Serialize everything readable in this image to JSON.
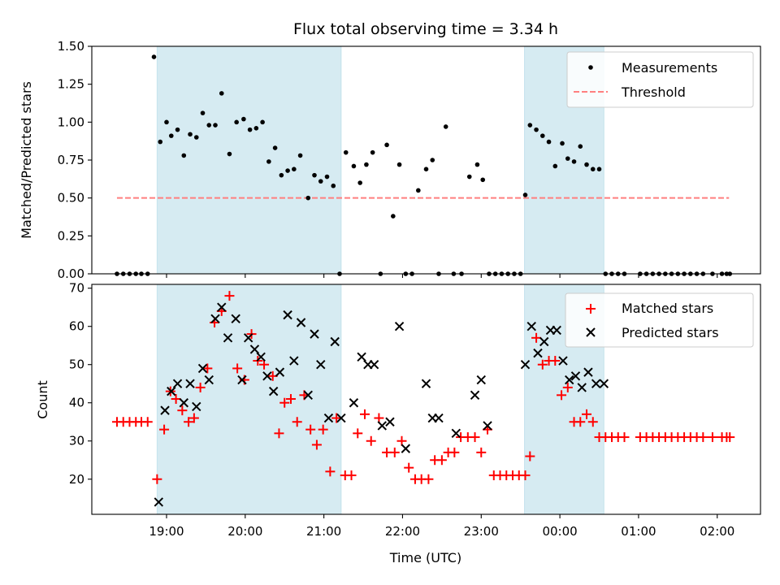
{
  "figure": {
    "title": "Flux total observing time = 3.34 h"
  },
  "chart_data": [
    {
      "type": "scatter",
      "ylabel": "Matched/Predicted stars",
      "xlabel": "",
      "xlim": [
        18.05,
        26.55
      ],
      "ylim": [
        0,
        1.5
      ],
      "y_ticks": [
        0,
        0.25,
        0.5,
        0.75,
        1.0,
        1.25,
        1.5
      ],
      "y_tick_labels": [
        "0.00",
        "0.25",
        "0.50",
        "0.75",
        "1.00",
        "1.25",
        "1.50"
      ],
      "legend": {
        "position": "top-right",
        "entries": [
          "Measurements",
          "Threshold"
        ]
      },
      "shaded_intervals": [
        [
          18.88,
          21.22
        ],
        [
          23.55,
          24.56
        ]
      ],
      "threshold": {
        "name": "Threshold",
        "y": 0.5,
        "x_range": [
          18.37,
          26.15
        ],
        "color": "#ff7f7f"
      },
      "series": [
        {
          "name": "Measurements",
          "color": "#000000",
          "x": [
            18.37,
            18.45,
            18.53,
            18.61,
            18.68,
            18.76,
            18.84,
            18.92,
            19.0,
            19.06,
            19.14,
            19.22,
            19.3,
            19.38,
            19.46,
            19.54,
            19.62,
            19.7,
            19.8,
            19.89,
            19.98,
            20.06,
            20.14,
            20.22,
            20.3,
            20.38,
            20.46,
            20.54,
            20.62,
            20.7,
            20.8,
            20.88,
            20.96,
            21.04,
            21.12,
            21.2,
            21.28,
            21.38,
            21.46,
            21.54,
            21.62,
            21.72,
            21.8,
            21.88,
            21.96,
            22.04,
            22.12,
            22.2,
            22.3,
            22.38,
            22.46,
            22.55,
            22.65,
            22.75,
            22.85,
            22.95,
            23.02,
            23.1,
            23.18,
            23.26,
            23.34,
            23.42,
            23.5,
            23.56,
            23.62,
            23.7,
            23.78,
            23.86,
            23.94,
            24.03,
            24.1,
            24.18,
            24.26,
            24.34,
            24.42,
            24.5,
            24.58,
            24.66,
            24.74,
            24.82,
            25.02,
            25.1,
            25.18,
            25.26,
            25.34,
            25.42,
            25.5,
            25.58,
            25.66,
            25.74,
            25.82,
            25.94,
            26.06,
            26.12,
            26.16
          ],
          "y": [
            0,
            0,
            0,
            0,
            0,
            0,
            1.43,
            0.87,
            1.0,
            0.91,
            0.95,
            0.78,
            0.92,
            0.9,
            1.06,
            0.98,
            0.98,
            1.19,
            0.79,
            1.0,
            1.02,
            0.95,
            0.96,
            1.0,
            0.74,
            0.83,
            0.65,
            0.68,
            0.69,
            0.78,
            0.5,
            0.65,
            0.61,
            0.64,
            0.58,
            0,
            0.8,
            0.71,
            0.6,
            0.72,
            0.8,
            0,
            0.85,
            0.38,
            0.72,
            0,
            0,
            0.55,
            0.69,
            0.75,
            0,
            0.97,
            0,
            0,
            0.64,
            0.72,
            0.62,
            0,
            0,
            0,
            0,
            0,
            0,
            0.52,
            0.98,
            0.95,
            0.91,
            0.87,
            0.71,
            0.86,
            0.76,
            0.74,
            0.84,
            0.72,
            0.69,
            0.69,
            0,
            0,
            0,
            0,
            0,
            0,
            0,
            0,
            0,
            0,
            0,
            0,
            0,
            0,
            0,
            0,
            0,
            0,
            0
          ]
        }
      ]
    },
    {
      "type": "scatter",
      "ylabel": "Count",
      "xlabel": "Time (UTC)",
      "xlim": [
        18.05,
        26.55
      ],
      "ylim": [
        10.8,
        71
      ],
      "y_ticks": [
        20,
        30,
        40,
        50,
        60,
        70
      ],
      "y_tick_labels": [
        "20",
        "30",
        "40",
        "50",
        "60",
        "70"
      ],
      "x_ticks": [
        19,
        20,
        21,
        22,
        23,
        24,
        25,
        26
      ],
      "x_tick_labels": [
        "19:00",
        "20:00",
        "21:00",
        "22:00",
        "23:00",
        "00:00",
        "01:00",
        "02:00"
      ],
      "legend": {
        "position": "top-right",
        "entries": [
          "Matched stars",
          "Predicted stars"
        ]
      },
      "shaded_intervals": [
        [
          18.88,
          21.22
        ],
        [
          23.55,
          24.56
        ]
      ],
      "series": [
        {
          "name": "Matched stars",
          "marker": "plus",
          "color": "#ff0000",
          "x": [
            18.37,
            18.45,
            18.53,
            18.61,
            18.68,
            18.76,
            18.88,
            18.97,
            19.05,
            19.12,
            19.2,
            19.28,
            19.35,
            19.43,
            19.52,
            19.61,
            19.7,
            19.8,
            19.9,
            19.99,
            20.08,
            20.16,
            20.24,
            20.35,
            20.43,
            20.5,
            20.58,
            20.66,
            20.75,
            20.83,
            20.91,
            20.99,
            21.08,
            21.16,
            21.27,
            21.35,
            21.43,
            21.52,
            21.6,
            21.7,
            21.8,
            21.9,
            21.99,
            22.08,
            22.16,
            22.24,
            22.33,
            22.41,
            22.5,
            22.58,
            22.66,
            22.74,
            22.83,
            22.92,
            23.0,
            23.08,
            23.16,
            23.24,
            23.32,
            23.4,
            23.48,
            23.56,
            23.62,
            23.7,
            23.78,
            23.86,
            23.94,
            24.02,
            24.1,
            24.18,
            24.26,
            24.34,
            24.42,
            24.5,
            24.58,
            24.66,
            24.74,
            24.82,
            25.02,
            25.1,
            25.18,
            25.26,
            25.34,
            25.42,
            25.5,
            25.58,
            25.66,
            25.74,
            25.82,
            25.94,
            26.06,
            26.12,
            26.16
          ],
          "y": [
            35,
            35,
            35,
            35,
            35,
            35,
            20,
            33,
            43,
            41,
            38,
            35,
            36,
            44,
            49,
            61,
            64,
            68,
            49,
            46,
            58,
            51,
            50,
            47,
            32,
            40,
            41,
            35,
            42,
            33,
            29,
            33,
            22,
            36,
            21,
            21,
            32,
            37,
            30,
            36,
            27,
            27,
            30,
            23,
            20,
            20,
            20,
            25,
            25,
            27,
            27,
            31,
            31,
            31,
            27,
            33,
            21,
            21,
            21,
            21,
            21,
            21,
            26,
            57,
            50,
            51,
            51,
            42,
            44,
            35,
            35,
            37,
            35,
            31,
            31,
            31,
            31,
            31,
            31,
            31,
            31,
            31,
            31,
            31,
            31,
            31,
            31,
            31,
            31,
            31,
            31,
            31,
            31
          ]
        },
        {
          "name": "Predicted stars",
          "marker": "x",
          "color": "#000000",
          "x": [
            18.9,
            18.98,
            19.06,
            19.14,
            19.22,
            19.3,
            19.38,
            19.46,
            19.54,
            19.62,
            19.7,
            19.78,
            19.88,
            19.96,
            20.04,
            20.12,
            20.2,
            20.28,
            20.36,
            20.44,
            20.54,
            20.62,
            20.71,
            20.8,
            20.88,
            20.96,
            21.06,
            21.14,
            21.22,
            21.38,
            21.48,
            21.56,
            21.64,
            21.74,
            21.84,
            21.96,
            22.04,
            22.3,
            22.38,
            22.46,
            22.68,
            22.92,
            23.0,
            23.08,
            23.56,
            23.64,
            23.72,
            23.8,
            23.88,
            23.96,
            24.04,
            24.12,
            24.2,
            24.28,
            24.36,
            24.46,
            24.56
          ],
          "y": [
            14,
            38,
            43,
            45,
            40,
            45,
            39,
            49,
            46,
            62,
            65,
            57,
            62,
            46,
            57,
            54,
            52,
            47,
            43,
            48,
            63,
            51,
            61,
            42,
            58,
            50,
            36,
            56,
            36,
            40,
            52,
            50,
            50,
            34,
            35,
            60,
            28,
            45,
            36,
            36,
            32,
            42,
            46,
            34,
            50,
            60,
            53,
            56,
            59,
            59,
            51,
            46,
            47,
            44,
            48,
            45,
            45
          ]
        }
      ]
    }
  ]
}
